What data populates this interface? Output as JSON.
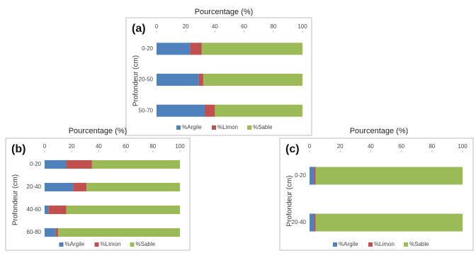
{
  "chart_data": [
    {
      "type": "stacked-bar-horizontal",
      "panel_label": "(a)",
      "title": "Pourcentage (%)",
      "y_label": "Profondeur (cm)",
      "categories": [
        "0-20",
        "20-50",
        "50-70"
      ],
      "series": [
        {
          "name": "%Argile",
          "color": "#4f81bd",
          "values": [
            23,
            29,
            33
          ]
        },
        {
          "name": "%Limon",
          "color": "#c0504d",
          "values": [
            8,
            3,
            7
          ]
        },
        {
          "name": "%Sable",
          "color": "#9bbb59",
          "values": [
            69,
            68,
            60
          ]
        }
      ],
      "xlim": [
        0,
        100
      ],
      "xticks": [
        0,
        20,
        40,
        60,
        80,
        100
      ],
      "legend": "bottom"
    },
    {
      "type": "stacked-bar-horizontal",
      "panel_label": "(b)",
      "title": "Pourcentage (%)",
      "y_label": "Profondeur (cm)",
      "categories": [
        "0-20",
        "20-40",
        "40-60",
        "60-80"
      ],
      "series": [
        {
          "name": "%Argile",
          "color": "#4f81bd",
          "values": [
            16,
            21,
            3,
            8
          ]
        },
        {
          "name": "%Limon",
          "color": "#c0504d",
          "values": [
            19,
            10,
            13,
            2
          ]
        },
        {
          "name": "%Sable",
          "color": "#9bbb59",
          "values": [
            65,
            69,
            84,
            90
          ]
        }
      ],
      "xlim": [
        0,
        100
      ],
      "xticks": [
        0,
        20,
        40,
        60,
        80,
        100
      ],
      "legend": "bottom"
    },
    {
      "type": "stacked-bar-horizontal",
      "panel_label": "(c)",
      "title": "Pourcentage (%)",
      "y_label": "Profondeur (cm)",
      "categories": [
        "0-20",
        "20-40"
      ],
      "series": [
        {
          "name": "%Argile",
          "color": "#4f81bd",
          "values": [
            3,
            3
          ]
        },
        {
          "name": "%Limon",
          "color": "#c0504d",
          "values": [
            1,
            1
          ]
        },
        {
          "name": "%Sable",
          "color": "#9bbb59",
          "values": [
            96,
            96
          ]
        }
      ],
      "xlim": [
        0,
        100
      ],
      "xticks": [
        0,
        20,
        40,
        60,
        80,
        100
      ],
      "legend": "bottom"
    }
  ]
}
